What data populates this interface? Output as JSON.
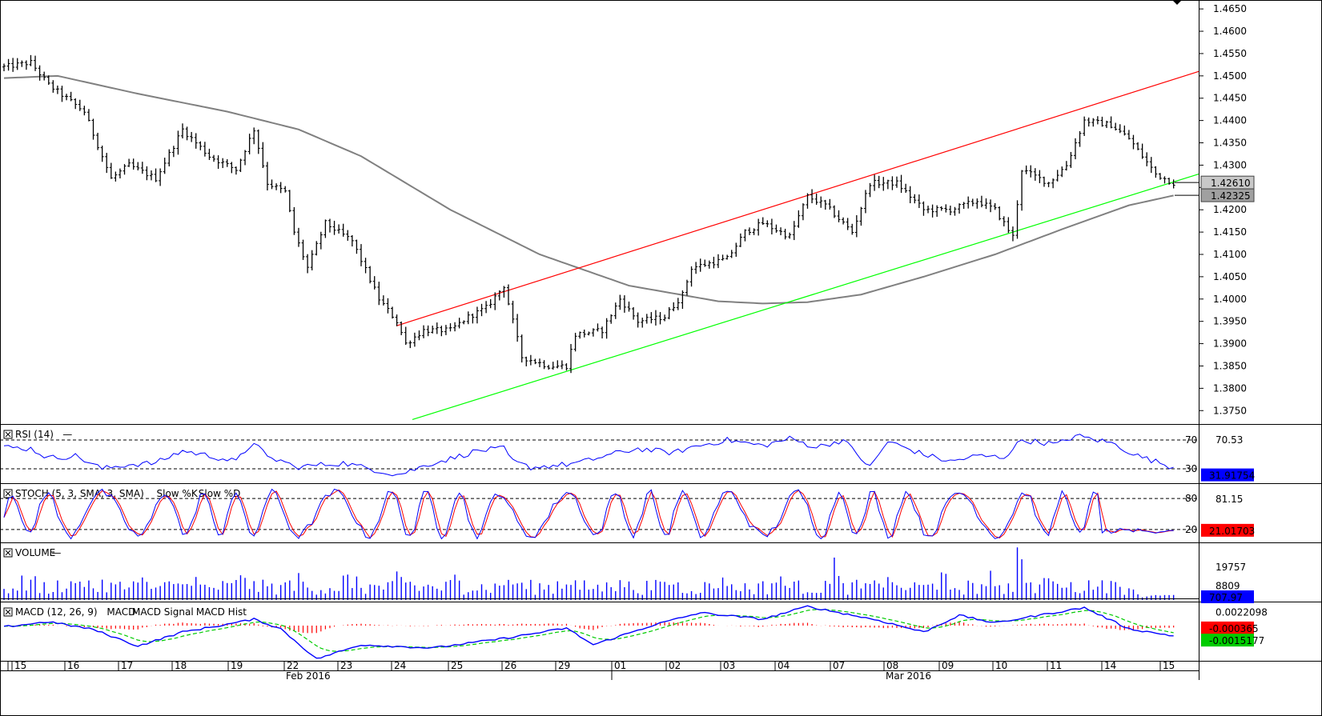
{
  "chart_data": [
    {
      "type": "line",
      "panel": "price",
      "symbol_style": "ohlc-bars",
      "ylim": [
        1.372,
        1.467
      ],
      "y_ticks": [
        "1.4650",
        "1.4600",
        "1.4550",
        "1.4500",
        "1.4450",
        "1.4400",
        "1.4350",
        "1.4300",
        "1.4250",
        "1.4200",
        "1.4150",
        "1.4100",
        "1.4050",
        "1.4000",
        "1.3950",
        "1.3900",
        "1.3850",
        "1.3800",
        "1.3750"
      ],
      "price_labels": [
        {
          "text": "1.42610",
          "value": 1.4261,
          "style": "grey"
        },
        {
          "text": "1.42325",
          "value": 1.42325,
          "style": "grey-dark"
        }
      ],
      "series": [
        {
          "role": "price",
          "color": "#000000",
          "anchors": [
            [
              0,
              1.452
            ],
            [
              6,
              1.453
            ],
            [
              10,
              1.448
            ],
            [
              14,
              1.445
            ],
            [
              18,
              1.442
            ],
            [
              24,
              1.427
            ],
            [
              28,
              1.43
            ],
            [
              34,
              1.427
            ],
            [
              40,
              1.438
            ],
            [
              46,
              1.432
            ],
            [
              52,
              1.429
            ],
            [
              56,
              1.438
            ],
            [
              59,
              1.426
            ],
            [
              63,
              1.424
            ],
            [
              65,
              1.415
            ],
            [
              68,
              1.407
            ],
            [
              72,
              1.417
            ],
            [
              78,
              1.413
            ],
            [
              84,
              1.4
            ],
            [
              88,
              1.395
            ],
            [
              90,
              1.39
            ],
            [
              94,
              1.393
            ],
            [
              100,
              1.393
            ],
            [
              104,
              1.396
            ],
            [
              108,
              1.398
            ],
            [
              112,
              1.403
            ],
            [
              114,
              1.395
            ],
            [
              116,
              1.387
            ],
            [
              122,
              1.385
            ],
            [
              126,
              1.385
            ],
            [
              128,
              1.392
            ],
            [
              134,
              1.393
            ],
            [
              138,
              1.4
            ],
            [
              142,
              1.395
            ],
            [
              148,
              1.396
            ],
            [
              152,
              1.401
            ],
            [
              154,
              1.407
            ],
            [
              162,
              1.409
            ],
            [
              166,
              1.415
            ],
            [
              170,
              1.417
            ],
            [
              176,
              1.414
            ],
            [
              180,
              1.423
            ],
            [
              184,
              1.421
            ],
            [
              190,
              1.415
            ],
            [
              194,
              1.426
            ],
            [
              200,
              1.426
            ],
            [
              206,
              1.42
            ],
            [
              212,
              1.42
            ],
            [
              218,
              1.422
            ],
            [
              222,
              1.42
            ],
            [
              226,
              1.414
            ],
            [
              228,
              1.429
            ],
            [
              234,
              1.426
            ],
            [
              238,
              1.43
            ],
            [
              242,
              1.44
            ],
            [
              248,
              1.439
            ],
            [
              252,
              1.436
            ],
            [
              258,
              1.428
            ],
            [
              262,
              1.426
            ]
          ]
        },
        {
          "role": "moving-average",
          "color": "#808080",
          "anchors": [
            [
              0,
              1.4495
            ],
            [
              12,
              1.45
            ],
            [
              30,
              1.446
            ],
            [
              50,
              1.442
            ],
            [
              66,
              1.438
            ],
            [
              80,
              1.432
            ],
            [
              100,
              1.42
            ],
            [
              120,
              1.41
            ],
            [
              140,
              1.403
            ],
            [
              160,
              1.3995
            ],
            [
              170,
              1.399
            ],
            [
              180,
              1.3993
            ],
            [
              192,
              1.401
            ],
            [
              206,
              1.405
            ],
            [
              222,
              1.41
            ],
            [
              238,
              1.416
            ],
            [
              252,
              1.421
            ],
            [
              262,
              1.4232
            ]
          ]
        },
        {
          "role": "channel-upper",
          "color": "#ff0000",
          "points": [
            [
              495,
              1.394
            ],
            [
              1497,
              1.451
            ]
          ]
        },
        {
          "role": "channel-lower",
          "color": "#00ff00",
          "points": [
            [
              515,
              1.373
            ],
            [
              1497,
              1.428
            ]
          ]
        }
      ]
    },
    {
      "type": "line",
      "panel": "rsi",
      "title": "RSI (14)",
      "ylim": [
        10,
        90
      ],
      "levels": [
        "70",
        "30"
      ],
      "value_labels": [
        {
          "text": "70.53",
          "style": "plain"
        },
        {
          "text": "31.91754",
          "style": "blue"
        }
      ],
      "series": [
        {
          "color": "#0000ff",
          "anchors": [
            [
              0,
              60
            ],
            [
              6,
              58
            ],
            [
              10,
              45
            ],
            [
              16,
              48
            ],
            [
              22,
              30
            ],
            [
              28,
              36
            ],
            [
              34,
              38
            ],
            [
              40,
              55
            ],
            [
              46,
              48
            ],
            [
              52,
              40
            ],
            [
              56,
              68
            ],
            [
              59,
              45
            ],
            [
              63,
              40
            ],
            [
              65,
              32
            ],
            [
              70,
              35
            ],
            [
              76,
              38
            ],
            [
              82,
              30
            ],
            [
              88,
              22
            ],
            [
              90,
              25
            ],
            [
              96,
              38
            ],
            [
              100,
              44
            ],
            [
              106,
              55
            ],
            [
              112,
              58
            ],
            [
              114,
              40
            ],
            [
              118,
              32
            ],
            [
              126,
              36
            ],
            [
              130,
              40
            ],
            [
              136,
              50
            ],
            [
              142,
              58
            ],
            [
              150,
              52
            ],
            [
              154,
              60
            ],
            [
              162,
              70
            ],
            [
              170,
              62
            ],
            [
              176,
              72
            ],
            [
              182,
              60
            ],
            [
              188,
              70
            ],
            [
              194,
              32
            ],
            [
              198,
              68
            ],
            [
              206,
              50
            ],
            [
              212,
              40
            ],
            [
              218,
              48
            ],
            [
              224,
              46
            ],
            [
              228,
              70
            ],
            [
              236,
              64
            ],
            [
              240,
              76
            ],
            [
              248,
              66
            ],
            [
              254,
              48
            ],
            [
              258,
              40
            ],
            [
              262,
              32
            ]
          ]
        }
      ]
    },
    {
      "type": "line",
      "panel": "stochastic",
      "title": "STOCH (5, 3, SMA, 3, SMA)",
      "legend": [
        "Slow %K",
        "Slow %D"
      ],
      "ylim": [
        -5,
        105
      ],
      "levels": [
        "80",
        "20"
      ],
      "value_labels": [
        {
          "text": "81.15",
          "style": "plain"
        },
        {
          "text": "21.01703",
          "style": "red"
        }
      ],
      "series": [
        {
          "name": "Slow %K",
          "color": "#0000ff"
        },
        {
          "name": "Slow %D",
          "color": "#ff0000"
        }
      ]
    },
    {
      "type": "bar",
      "panel": "volume",
      "title": "VOLUME",
      "ylim": [
        0,
        33000
      ],
      "value_labels": [
        {
          "text": "19757",
          "style": "plain"
        },
        {
          "text": "8809",
          "style": "plain"
        },
        {
          "text": "707.97",
          "style": "blue"
        }
      ],
      "series": [
        {
          "color": "#0000ff"
        }
      ]
    },
    {
      "type": "line",
      "panel": "macd",
      "title": "MACD (12, 26, 9)",
      "legend": [
        "MACD",
        "MACD Signal",
        "MACD Hist"
      ],
      "ylim": [
        -0.0055,
        0.0035
      ],
      "value_labels": [
        {
          "text": "0.0022098",
          "style": "plain"
        },
        {
          "text": "-0.000365",
          "style": "red"
        },
        {
          "text": "-0.0015177",
          "style": "green"
        }
      ],
      "series": [
        {
          "name": "MACD",
          "color": "#0000ff",
          "anchors": [
            [
              0,
              -0.0002
            ],
            [
              10,
              0.0006
            ],
            [
              20,
              -0.0006
            ],
            [
              30,
              -0.0032
            ],
            [
              40,
              -0.001
            ],
            [
              50,
              0.0002
            ],
            [
              56,
              0.001
            ],
            [
              62,
              -0.0005
            ],
            [
              70,
              -0.0052
            ],
            [
              80,
              -0.003
            ],
            [
              96,
              -0.0035
            ],
            [
              112,
              -0.002
            ],
            [
              126,
              -0.0004
            ],
            [
              132,
              -0.003
            ],
            [
              146,
              0.0002
            ],
            [
              156,
              0.002
            ],
            [
              170,
              0.001
            ],
            [
              180,
              0.003
            ],
            [
              196,
              0.0008
            ],
            [
              206,
              -0.001
            ],
            [
              214,
              0.0016
            ],
            [
              222,
              0.0004
            ],
            [
              230,
              0.0014
            ],
            [
              242,
              0.0028
            ],
            [
              252,
              -0.0005
            ],
            [
              262,
              -0.0016
            ]
          ]
        },
        {
          "name": "MACD Signal",
          "color": "#00cc00"
        },
        {
          "name": "MACD Hist",
          "color": "#ff0000"
        }
      ]
    }
  ],
  "x_axis": {
    "day_labels": [
      "15",
      "16",
      "17",
      "18",
      "19",
      "22",
      "23",
      "24",
      "25",
      "26",
      "29",
      "01",
      "02",
      "03",
      "04",
      "07",
      "08",
      "09",
      "10",
      "11",
      "14",
      "15"
    ],
    "month_labels": [
      "Feb 2016",
      "Mar 2016"
    ]
  }
}
